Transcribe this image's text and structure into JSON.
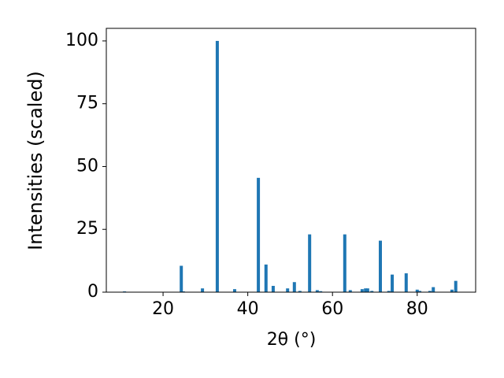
{
  "chart_data": {
    "type": "bar",
    "xlabel": "2θ (°)",
    "ylabel": "Intensities (scaled)",
    "color": "#1f77b4",
    "x": [
      10.9,
      24.3,
      24.8,
      29.3,
      32.8,
      36.9,
      42.5,
      44.3,
      46.0,
      49.4,
      51.0,
      52.3,
      54.6,
      56.4,
      57.2,
      62.9,
      64.2,
      67.0,
      67.8,
      68.3,
      69.3,
      71.3,
      73.3,
      74.1,
      77.4,
      80.0,
      80.6,
      83.0,
      83.8,
      88.2,
      89.1
    ],
    "values": [
      0.3,
      10.5,
      0.3,
      1.5,
      100,
      1.2,
      45.5,
      11,
      2.5,
      1.5,
      4,
      0.5,
      23,
      0.8,
      0.4,
      23,
      0.8,
      1.2,
      1.5,
      1.5,
      0.5,
      20.5,
      0.5,
      7,
      7.5,
      1,
      0.5,
      0.5,
      2,
      1,
      4.5
    ],
    "xlim": [
      6.6,
      93.8
    ],
    "ylim": [
      0,
      105
    ],
    "xticks": [
      20,
      40,
      60,
      80
    ],
    "yticks": [
      0,
      25,
      50,
      75,
      100
    ]
  }
}
